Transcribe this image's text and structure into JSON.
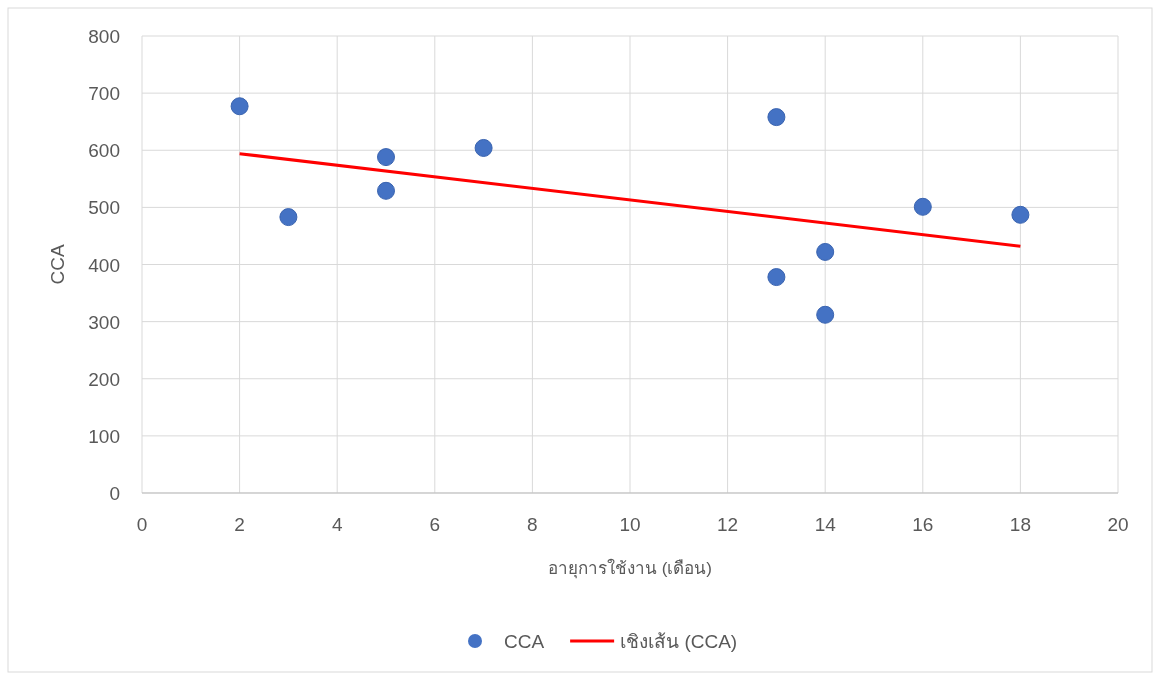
{
  "chart_data": {
    "type": "scatter",
    "xlabel": "อายุการใช้งาน (เดือน)",
    "ylabel": "CCA",
    "xlim": [
      0,
      20
    ],
    "xticks": [
      0,
      2,
      4,
      6,
      8,
      10,
      12,
      14,
      16,
      18,
      20
    ],
    "ylim": [
      0,
      800
    ],
    "yticks": [
      0,
      100,
      200,
      300,
      400,
      500,
      600,
      700,
      800
    ],
    "grid": true,
    "legend": "bottom",
    "series": [
      {
        "name": "CCA",
        "color": "#4472c4",
        "marker": "circle",
        "x": [
          2,
          3,
          5,
          5,
          7,
          13,
          13,
          14,
          14,
          16,
          18
        ],
        "values": [
          677,
          483,
          588,
          529,
          604,
          658,
          378,
          422,
          312,
          501,
          487
        ]
      },
      {
        "name": "เชิงเส้น (CCA)",
        "type": "line",
        "color": "#ff0000",
        "marker": "none",
        "line_style": "solid",
        "x": [
          2,
          18
        ],
        "values": [
          594,
          432
        ]
      }
    ]
  }
}
